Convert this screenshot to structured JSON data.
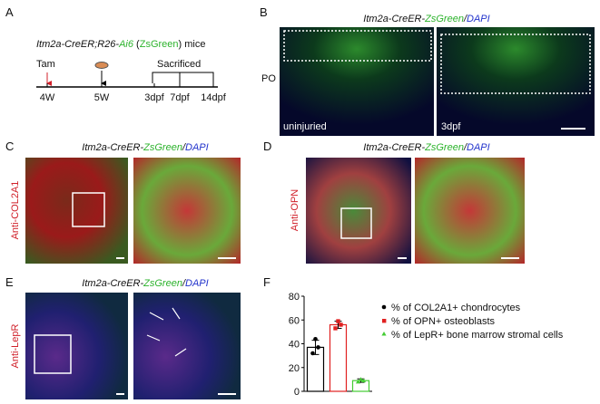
{
  "panel_a": {
    "label": "A",
    "title_parts": [
      "Itm2a-CreER;R26-",
      "Ai6",
      " (",
      "ZsGreen",
      ") mice"
    ],
    "tam": "Tam",
    "sacrificed": "Sacrificed",
    "timepoints": [
      "4W",
      "5W",
      "3dpf",
      "7dpf",
      "14dpf"
    ]
  },
  "panel_b": {
    "label": "B",
    "title_parts": [
      "Itm2a-CreER-",
      "ZsGreen",
      "/",
      "DAPI"
    ],
    "side_label": "PO",
    "image_labels": [
      "uninjuried",
      "3dpf"
    ]
  },
  "panel_c": {
    "label": "C",
    "title_parts": [
      "Itm2a-CreER-",
      "ZsGreen",
      "/",
      "DAPI"
    ],
    "side_label": "Anti-COL2A1"
  },
  "panel_d": {
    "label": "D",
    "title_parts": [
      "Itm2a-CreER-",
      "ZsGreen",
      "/",
      "DAPI"
    ],
    "side_label": "Anti-OPN"
  },
  "panel_e": {
    "label": "E",
    "title_parts": [
      "Itm2a-CreER-",
      "ZsGreen",
      "/",
      "DAPI"
    ],
    "side_label": "Anti-LepR"
  },
  "chart_data": {
    "type": "bar",
    "label": "F",
    "categories": [
      "% of COL2A1+ chondrocytes",
      "% of OPN+ osteoblasts",
      "% of LepR+ bone marrow stromal cells"
    ],
    "values": [
      37,
      56,
      9
    ],
    "errors": [
      6,
      3,
      1.5
    ],
    "points": [
      [
        32,
        37,
        44
      ],
      [
        53,
        56,
        59
      ],
      [
        8,
        9,
        10
      ]
    ],
    "colors": [
      "#000000",
      "#e02020",
      "#44cc33"
    ],
    "ylim": [
      0,
      80
    ],
    "yticks": [
      0,
      20,
      40,
      60,
      80
    ]
  }
}
